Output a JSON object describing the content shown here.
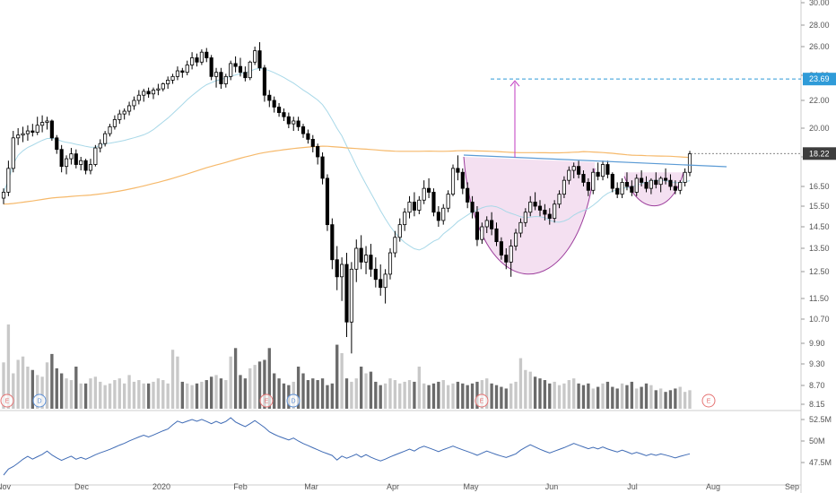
{
  "chart_data": {
    "type": "candlestick",
    "price_axis": {
      "ticks": [
        "30.00",
        "28.00",
        "26.00",
        "24.00",
        "22.00",
        "20.00",
        "18.00",
        "16.50",
        "15.50",
        "14.50",
        "13.50",
        "12.50",
        "11.50",
        "10.70",
        "9.90",
        "9.30",
        "8.70",
        "8.15"
      ],
      "scale": "log"
    },
    "indicator_axis": {
      "ticks": [
        "52.5M",
        "50M",
        "47.5M"
      ]
    },
    "x_axis": {
      "ticks": [
        "Nov",
        "Dec",
        "2020",
        "Feb",
        "Mar",
        "Apr",
        "May",
        "Jun",
        "Jul",
        "Aug",
        "Sep"
      ]
    },
    "price_labels": {
      "target": "23.69",
      "current": "18.22"
    },
    "candles_ohlc": [
      [
        15.9,
        16.4,
        15.6,
        16.2
      ],
      [
        16.2,
        17.8,
        16.0,
        17.4
      ],
      [
        17.4,
        19.8,
        17.2,
        19.3
      ],
      [
        19.3,
        20.0,
        18.8,
        19.5
      ],
      [
        19.5,
        20.1,
        19.0,
        19.6
      ],
      [
        19.6,
        20.2,
        19.1,
        19.8
      ],
      [
        19.8,
        20.3,
        19.4,
        19.7
      ],
      [
        19.7,
        20.8,
        19.5,
        20.2
      ],
      [
        20.2,
        20.9,
        19.7,
        20.4
      ],
      [
        20.4,
        20.8,
        19.9,
        20.5
      ],
      [
        20.5,
        20.6,
        19.1,
        19.3
      ],
      [
        19.3,
        19.5,
        18.2,
        18.5
      ],
      [
        18.5,
        18.8,
        17.2,
        17.5
      ],
      [
        17.5,
        18.1,
        17.1,
        17.9
      ],
      [
        17.9,
        18.6,
        17.6,
        18.2
      ],
      [
        18.2,
        18.5,
        17.4,
        17.6
      ],
      [
        17.6,
        18.0,
        17.3,
        17.8
      ],
      [
        17.8,
        17.9,
        17.1,
        17.3
      ],
      [
        17.3,
        17.9,
        17.1,
        17.6
      ],
      [
        17.6,
        18.8,
        17.5,
        18.6
      ],
      [
        18.6,
        19.2,
        18.3,
        18.9
      ],
      [
        18.9,
        19.8,
        18.7,
        19.6
      ],
      [
        19.6,
        20.3,
        19.4,
        20.1
      ],
      [
        20.1,
        20.9,
        19.9,
        20.6
      ],
      [
        20.6,
        21.3,
        20.3,
        21.0
      ],
      [
        21.0,
        21.4,
        20.6,
        21.2
      ],
      [
        21.2,
        21.9,
        20.9,
        21.6
      ],
      [
        21.6,
        22.3,
        21.3,
        22.0
      ],
      [
        22.0,
        22.8,
        21.7,
        22.4
      ],
      [
        22.4,
        22.9,
        21.9,
        22.7
      ],
      [
        22.7,
        23.0,
        22.2,
        22.5
      ],
      [
        22.5,
        23.0,
        22.1,
        22.8
      ],
      [
        22.8,
        23.3,
        22.4,
        22.9
      ],
      [
        22.9,
        23.4,
        22.7,
        23.3
      ],
      [
        23.3,
        23.9,
        22.9,
        23.6
      ],
      [
        23.6,
        24.1,
        23.3,
        23.9
      ],
      [
        23.9,
        24.6,
        23.6,
        24.3
      ],
      [
        24.3,
        24.5,
        23.8,
        24.2
      ],
      [
        24.2,
        25.0,
        24.0,
        24.7
      ],
      [
        24.7,
        25.6,
        24.4,
        25.2
      ],
      [
        25.2,
        25.5,
        24.6,
        24.9
      ],
      [
        24.9,
        25.8,
        24.7,
        25.6
      ],
      [
        25.6,
        25.9,
        24.9,
        25.2
      ],
      [
        25.2,
        25.4,
        23.6,
        23.9
      ],
      [
        23.9,
        24.5,
        23.0,
        24.2
      ],
      [
        24.2,
        24.5,
        22.9,
        23.3
      ],
      [
        23.3,
        24.1,
        23.0,
        23.9
      ],
      [
        23.9,
        25.0,
        23.6,
        24.8
      ],
      [
        24.8,
        25.3,
        24.2,
        24.6
      ],
      [
        24.6,
        25.2,
        23.9,
        24.2
      ],
      [
        24.2,
        24.6,
        23.5,
        23.8
      ],
      [
        23.8,
        25.0,
        23.6,
        24.9
      ],
      [
        24.9,
        26.0,
        24.7,
        25.7
      ],
      [
        25.7,
        26.4,
        24.3,
        24.5
      ],
      [
        24.5,
        24.7,
        21.9,
        22.4
      ],
      [
        22.4,
        22.8,
        21.5,
        22.0
      ],
      [
        22.0,
        22.3,
        21.1,
        21.5
      ],
      [
        21.5,
        21.8,
        20.8,
        21.1
      ],
      [
        21.1,
        21.4,
        20.5,
        20.8
      ],
      [
        20.8,
        21.1,
        20.0,
        20.3
      ],
      [
        20.3,
        20.8,
        19.8,
        20.5
      ],
      [
        20.5,
        20.8,
        19.8,
        20.1
      ],
      [
        20.1,
        20.3,
        19.3,
        19.6
      ],
      [
        19.6,
        19.9,
        18.9,
        19.2
      ],
      [
        19.2,
        19.5,
        18.3,
        18.7
      ],
      [
        18.7,
        18.9,
        17.6,
        18.0
      ],
      [
        18.0,
        18.3,
        16.6,
        16.9
      ],
      [
        16.9,
        17.1,
        14.3,
        14.6
      ],
      [
        14.6,
        14.9,
        12.6,
        13.0
      ],
      [
        13.0,
        13.6,
        11.8,
        12.3
      ],
      [
        12.3,
        13.1,
        11.4,
        12.8
      ],
      [
        12.8,
        13.3,
        10.1,
        10.6
      ],
      [
        10.6,
        12.9,
        9.6,
        12.6
      ],
      [
        12.6,
        13.9,
        12.1,
        13.5
      ],
      [
        13.5,
        14.1,
        12.6,
        12.9
      ],
      [
        12.9,
        13.6,
        12.4,
        13.2
      ],
      [
        13.2,
        13.7,
        12.3,
        12.6
      ],
      [
        12.6,
        13.1,
        11.9,
        12.2
      ],
      [
        12.2,
        12.8,
        11.6,
        11.9
      ],
      [
        11.9,
        12.6,
        11.3,
        12.4
      ],
      [
        12.4,
        13.5,
        12.2,
        13.3
      ],
      [
        13.3,
        14.3,
        13.1,
        14.0
      ],
      [
        14.0,
        14.9,
        13.8,
        14.6
      ],
      [
        14.6,
        15.4,
        14.3,
        15.2
      ],
      [
        15.2,
        16.0,
        14.9,
        15.7
      ],
      [
        15.7,
        16.2,
        15.0,
        15.3
      ],
      [
        15.3,
        16.0,
        15.1,
        15.8
      ],
      [
        15.8,
        16.8,
        15.6,
        16.4
      ],
      [
        16.4,
        16.9,
        15.9,
        16.2
      ],
      [
        16.2,
        16.4,
        15.0,
        15.2
      ],
      [
        15.2,
        15.5,
        14.5,
        14.8
      ],
      [
        14.8,
        15.6,
        14.6,
        15.4
      ],
      [
        15.4,
        16.3,
        15.2,
        16.1
      ],
      [
        16.1,
        17.6,
        16.0,
        17.4
      ],
      [
        17.4,
        18.1,
        16.8,
        17.2
      ],
      [
        17.2,
        17.4,
        16.1,
        16.4
      ],
      [
        16.4,
        16.7,
        15.4,
        15.7
      ],
      [
        15.7,
        16.0,
        14.9,
        15.2
      ],
      [
        15.2,
        15.5,
        13.6,
        13.9
      ],
      [
        13.9,
        14.7,
        13.7,
        14.5
      ],
      [
        14.5,
        15.0,
        14.2,
        14.8
      ],
      [
        14.8,
        15.2,
        14.1,
        14.4
      ],
      [
        14.4,
        14.7,
        13.6,
        13.8
      ],
      [
        13.8,
        14.0,
        13.0,
        13.2
      ],
      [
        13.2,
        13.5,
        12.6,
        12.9
      ],
      [
        12.9,
        13.9,
        12.3,
        13.6
      ],
      [
        13.6,
        14.4,
        13.4,
        14.2
      ],
      [
        14.2,
        14.9,
        14.0,
        14.7
      ],
      [
        14.7,
        15.4,
        14.5,
        15.2
      ],
      [
        15.2,
        16.0,
        15.0,
        15.7
      ],
      [
        15.7,
        16.2,
        15.3,
        15.5
      ],
      [
        15.5,
        15.8,
        15.0,
        15.3
      ],
      [
        15.3,
        15.6,
        14.8,
        15.1
      ],
      [
        15.1,
        15.4,
        14.6,
        14.9
      ],
      [
        14.9,
        15.8,
        14.7,
        15.6
      ],
      [
        15.6,
        16.3,
        15.4,
        16.1
      ],
      [
        16.1,
        17.0,
        15.9,
        16.8
      ],
      [
        16.8,
        17.5,
        16.6,
        17.3
      ],
      [
        17.3,
        17.7,
        16.9,
        17.5
      ],
      [
        17.5,
        17.8,
        16.9,
        17.1
      ],
      [
        17.1,
        17.3,
        16.5,
        16.7
      ],
      [
        16.7,
        16.9,
        16.0,
        16.3
      ],
      [
        16.3,
        17.4,
        16.1,
        17.2
      ],
      [
        17.2,
        17.7,
        16.8,
        17.0
      ],
      [
        17.0,
        17.8,
        16.8,
        17.6
      ],
      [
        17.6,
        17.8,
        16.9,
        17.1
      ],
      [
        17.1,
        17.2,
        16.2,
        16.4
      ],
      [
        16.4,
        16.7,
        15.9,
        16.1
      ],
      [
        16.1,
        16.9,
        15.9,
        16.7
      ],
      [
        16.7,
        17.2,
        16.3,
        16.5
      ],
      [
        16.5,
        16.8,
        16.0,
        16.2
      ],
      [
        16.2,
        17.1,
        16.0,
        16.9
      ],
      [
        16.9,
        17.3,
        16.5,
        16.7
      ],
      [
        16.7,
        17.0,
        16.2,
        16.4
      ],
      [
        16.4,
        16.9,
        16.1,
        16.8
      ],
      [
        16.8,
        17.2,
        16.4,
        16.6
      ],
      [
        16.6,
        17.0,
        16.2,
        16.9
      ],
      [
        16.9,
        17.4,
        16.6,
        16.8
      ],
      [
        16.8,
        17.1,
        16.3,
        16.5
      ],
      [
        16.5,
        16.8,
        16.1,
        16.3
      ],
      [
        16.3,
        16.8,
        16.1,
        16.7
      ],
      [
        16.7,
        17.4,
        16.5,
        17.2
      ],
      [
        17.2,
        18.4,
        17.0,
        18.2
      ]
    ],
    "volume": [
      0.55,
      1.0,
      0.42,
      0.58,
      0.62,
      0.5,
      0.46,
      0.4,
      0.38,
      0.55,
      0.65,
      0.48,
      0.42,
      0.36,
      0.34,
      0.5,
      0.3,
      0.3,
      0.36,
      0.38,
      0.32,
      0.28,
      0.3,
      0.34,
      0.36,
      0.3,
      0.4,
      0.32,
      0.34,
      0.3,
      0.3,
      0.32,
      0.36,
      0.34,
      0.3,
      0.7,
      0.62,
      0.32,
      0.3,
      0.28,
      0.3,
      0.32,
      0.34,
      0.38,
      0.4,
      0.36,
      0.34,
      0.62,
      0.72,
      0.4,
      0.36,
      0.48,
      0.52,
      0.56,
      0.58,
      0.72,
      0.42,
      0.36,
      0.3,
      0.28,
      0.32,
      0.5,
      0.42,
      0.34,
      0.36,
      0.34,
      0.36,
      0.28,
      0.3,
      0.76,
      0.66,
      0.36,
      0.32,
      0.36,
      0.5,
      0.42,
      0.44,
      0.32,
      0.28,
      0.3,
      0.36,
      0.34,
      0.3,
      0.32,
      0.34,
      0.32,
      0.5,
      0.3,
      0.28,
      0.3,
      0.32,
      0.34,
      0.28,
      0.3,
      0.32,
      0.3,
      0.28,
      0.3,
      0.32,
      0.34,
      0.36,
      0.3,
      0.28,
      0.26,
      0.24,
      0.3,
      0.32,
      0.6,
      0.46,
      0.44,
      0.38,
      0.36,
      0.34,
      0.3,
      0.32,
      0.28,
      0.3,
      0.34,
      0.36,
      0.3,
      0.28,
      0.3,
      0.24,
      0.26,
      0.3,
      0.32,
      0.26,
      0.24,
      0.3,
      0.28,
      0.32,
      0.24,
      0.26,
      0.3,
      0.28,
      0.22,
      0.24,
      0.2,
      0.22,
      0.24,
      0.26,
      0.2,
      0.22,
      0.18,
      0.2,
      0.22,
      0.24,
      0.3
    ]
  },
  "icons": {
    "earnings_tag_color": "#e57373",
    "dividend_tag_color": "#5c8fd6"
  },
  "colors": {
    "up_body": "#ffffff",
    "down_body": "#000000",
    "ma_short": "#a8d8e8",
    "ma_long": "#f6b96b",
    "resistance_line": "#5b9bd5",
    "target_line": "#2f9bd8",
    "target_arrow": "#c23bc2",
    "cup_fill": "#f2dbef",
    "cup_stroke": "#9c3d9c",
    "indicator_line": "#3f6bb5",
    "badge_current": "#3d3d3d",
    "badge_target": "#2f9bd8"
  }
}
